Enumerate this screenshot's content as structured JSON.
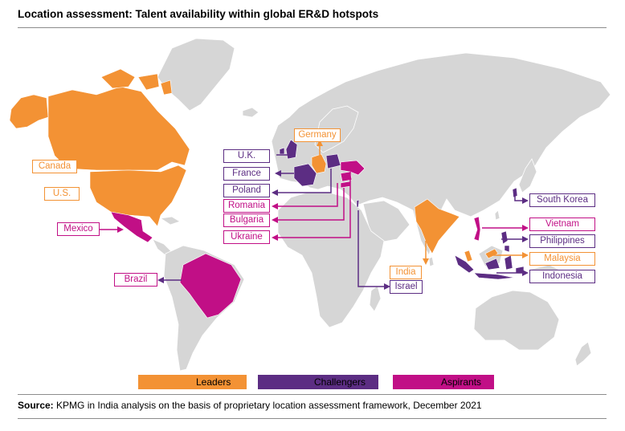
{
  "title": "Location assessment: Talent availability within global ER&D hotspots",
  "colors": {
    "leaders": "#f39234",
    "challengers": "#5c2d83",
    "aspirants": "#c10f86",
    "land": "#d6d6d6"
  },
  "legend": [
    {
      "label": "Leaders",
      "category": "leaders"
    },
    {
      "label": "Challengers",
      "category": "challengers"
    },
    {
      "label": "Aspirants",
      "category": "aspirants"
    }
  ],
  "countries": {
    "uk": {
      "name": "U.K.",
      "category": "challengers"
    },
    "france": {
      "name": "France",
      "category": "challengers"
    },
    "poland": {
      "name": "Poland",
      "category": "challengers"
    },
    "romania": {
      "name": "Romania",
      "category": "aspirants"
    },
    "bulgaria": {
      "name": "Bulgaria",
      "category": "aspirants"
    },
    "ukraine": {
      "name": "Ukraine",
      "category": "aspirants"
    },
    "germany": {
      "name": "Germany",
      "category": "leaders"
    },
    "canada": {
      "name": "Canada",
      "category": "leaders"
    },
    "us": {
      "name": "U.S.",
      "category": "leaders"
    },
    "mexico": {
      "name": "Mexico",
      "category": "aspirants"
    },
    "brazil": {
      "name": "Brazil",
      "category": "aspirants"
    },
    "india": {
      "name": "India",
      "category": "leaders"
    },
    "israel": {
      "name": "Israel",
      "category": "challengers"
    },
    "south_korea": {
      "name": "South Korea",
      "category": "challengers"
    },
    "vietnam": {
      "name": "Vietnam",
      "category": "aspirants"
    },
    "philippines": {
      "name": "Philippines",
      "category": "challengers"
    },
    "malaysia": {
      "name": "Malaysia",
      "category": "leaders"
    },
    "indonesia": {
      "name": "Indonesia",
      "category": "challengers"
    }
  },
  "source": {
    "label": "Source:",
    "text": " KPMG in India analysis on the basis of proprietary location assessment framework, December 2021"
  }
}
